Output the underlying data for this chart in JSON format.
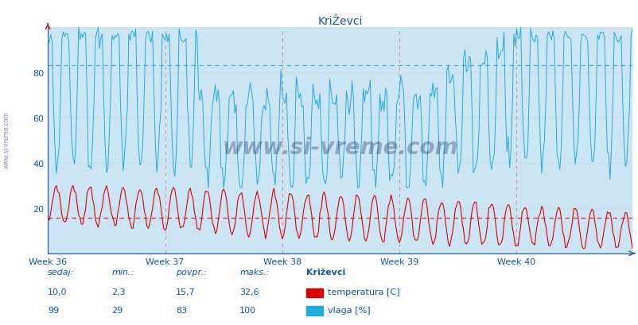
{
  "title": "KriŽevci",
  "title_color": "#1155aa",
  "outer_bg": "#ffffff",
  "plot_bg_color": "#cce5f5",
  "temp_color": "#dd0000",
  "humidity_color": "#22aadd",
  "temp_avg_line": 15.7,
  "humidity_avg_line": 83,
  "ylim": [
    0,
    100
  ],
  "yticks": [
    20,
    40,
    60,
    80
  ],
  "week_labels": [
    "Week 36",
    "Week 37",
    "Week 38",
    "Week 39",
    "Week 40"
  ],
  "text_color": "#1155aa",
  "grid_minor_color": "#aaccdd",
  "vline_color": "#cc8888",
  "hline_temp_color": "#dd0000",
  "hline_hum_color": "#22aadd",
  "legend_title": "Križevci",
  "legend_labels": [
    "temperatura [C]",
    "vlaga [%]"
  ],
  "footer_labels": [
    "sedaj:",
    "min.:",
    "povpr.:",
    "maks.:"
  ],
  "footer_temp": [
    "10,0",
    "2,3",
    "15,7",
    "32,6"
  ],
  "footer_humidity": [
    "99",
    "29",
    "83",
    "100"
  ],
  "footer_color": "#1155aa",
  "watermark": "www.si-vreme.com",
  "watermark_color": "#223366",
  "side_watermark": "www.si-vreme.com",
  "n_days": 35,
  "pts_per_day": 12
}
